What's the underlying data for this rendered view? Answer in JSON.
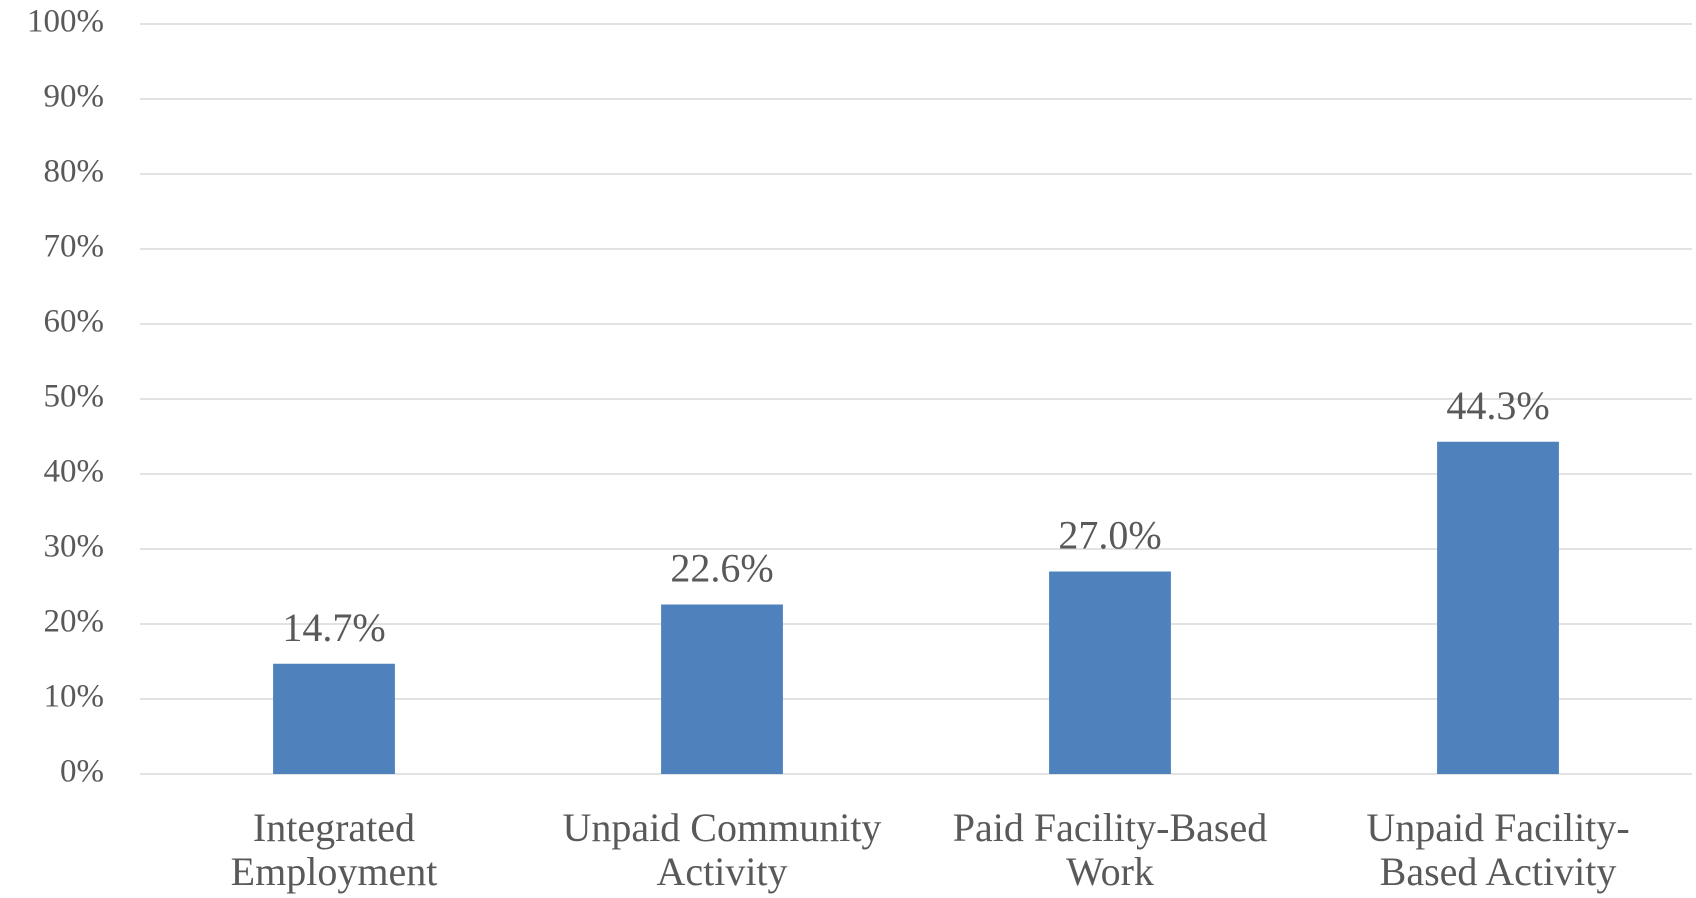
{
  "chart_data": {
    "type": "bar",
    "categories": [
      "Integrated Employment",
      "Unpaid Community Activity",
      "Paid Facility-Based Work",
      "Unpaid Facility-Based Activity"
    ],
    "values": [
      14.7,
      22.6,
      27.0,
      44.3
    ],
    "value_labels": [
      "14.7%",
      "22.6%",
      "27.0%",
      "44.3%"
    ],
    "color": "#4f81bd",
    "ylim": [
      0,
      100
    ],
    "yticks": [
      {
        "value": 0,
        "label": "0%"
      },
      {
        "value": 10,
        "label": "10%"
      },
      {
        "value": 20,
        "label": "20%"
      },
      {
        "value": 30,
        "label": "30%"
      },
      {
        "value": 40,
        "label": "40%"
      },
      {
        "value": 50,
        "label": "50%"
      },
      {
        "value": 60,
        "label": "60%"
      },
      {
        "value": 70,
        "label": "70%"
      },
      {
        "value": 80,
        "label": "80%"
      },
      {
        "value": 90,
        "label": "90%"
      },
      {
        "value": 100,
        "label": "100%"
      }
    ],
    "grid": true
  }
}
